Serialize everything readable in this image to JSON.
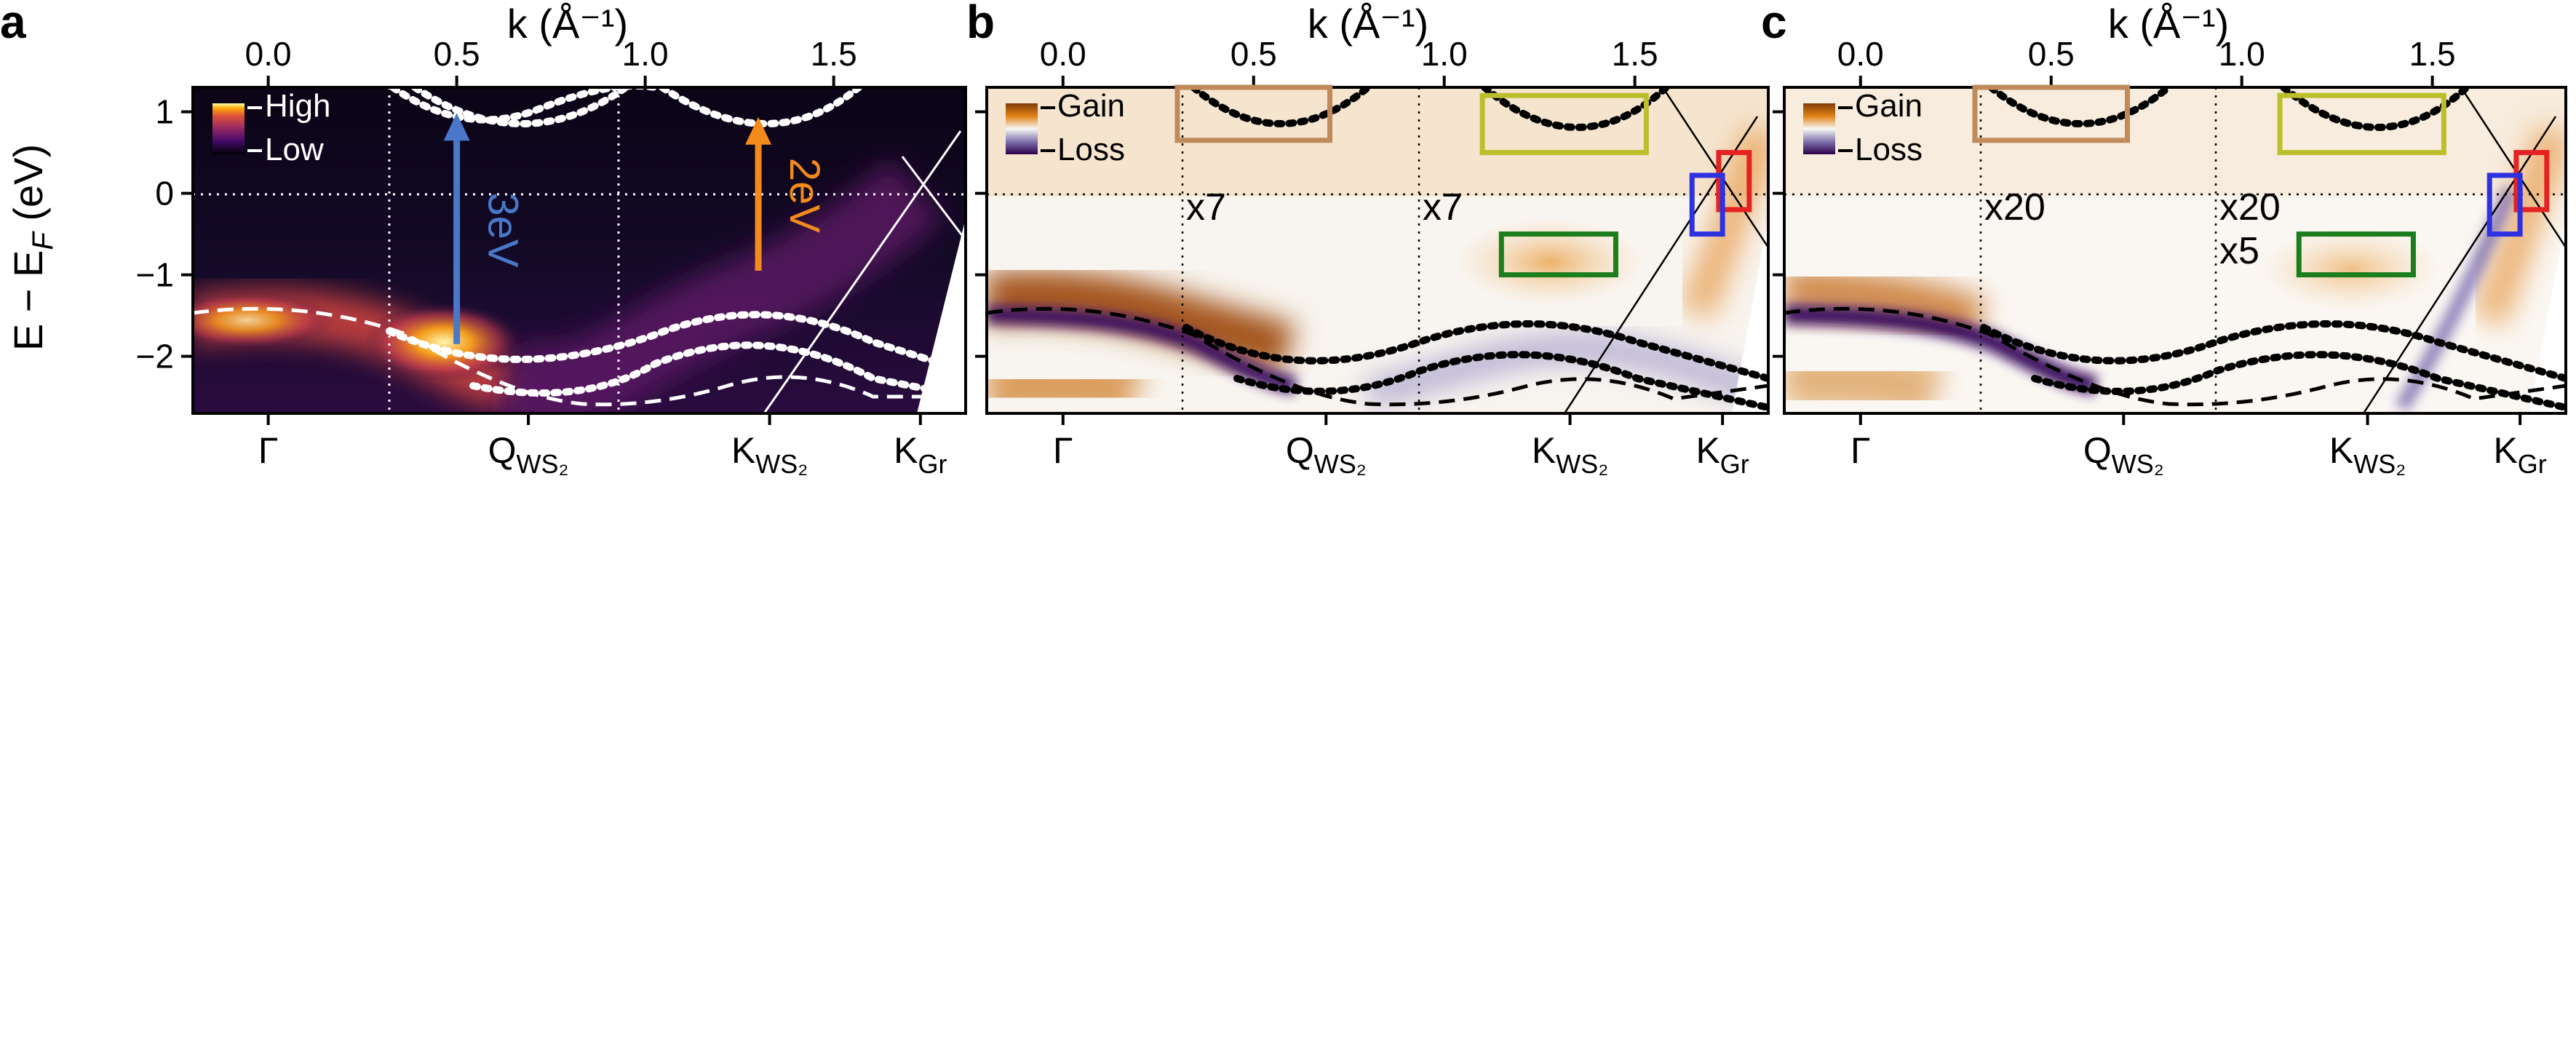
{
  "figure": {
    "top_axis_label": "k (Å⁻¹)",
    "y_axis_label": "E − E",
    "y_axis_label_sub": "F",
    "y_axis_label_unit": " (eV)"
  },
  "chart_data": [
    {
      "panel": "a",
      "type": "heatmap",
      "colormap": "inferno",
      "colorbar": {
        "high": "High",
        "low": "Low"
      },
      "x_top_ticks": [
        "0.0",
        "0.5",
        "1.0",
        "1.5"
      ],
      "x_top_range": [
        -0.2,
        1.85
      ],
      "x_bottom_ticks": [
        {
          "base": "Γ",
          "sub": "",
          "k": 0.0
        },
        {
          "base": "Q",
          "sub": "WS₂",
          "k": 0.69
        },
        {
          "base": "K",
          "sub": "WS₂",
          "k": 1.33
        },
        {
          "base": "K",
          "sub": "Gr",
          "k": 1.73
        }
      ],
      "y_ticks": [
        "1",
        "0",
        "−1",
        "−2"
      ],
      "ylim": [
        -2.7,
        1.3
      ],
      "arrows": [
        {
          "label": "3eV",
          "k": 0.5,
          "from": -1.85,
          "to": 0.95,
          "color": "#4a78c8"
        },
        {
          "label": "2eV",
          "k": 1.3,
          "from": -0.95,
          "to": 0.9,
          "color": "#f28a1c"
        }
      ]
    },
    {
      "panel": "b",
      "type": "heatmap",
      "colormap": "PuOr_r",
      "colorbar": {
        "high": "Gain",
        "low": "Loss"
      },
      "x_top_ticks": [
        "0.0",
        "0.5",
        "1.0",
        "1.5"
      ],
      "x_top_range": [
        -0.2,
        1.85
      ],
      "x_bottom_ticks": [
        {
          "base": "Γ",
          "sub": "",
          "k": 0.0
        },
        {
          "base": "Q",
          "sub": "WS₂",
          "k": 0.69
        },
        {
          "base": "K",
          "sub": "WS₂",
          "k": 1.33
        },
        {
          "base": "K",
          "sub": "Gr",
          "k": 1.73
        }
      ],
      "ylim": [
        -2.7,
        1.3
      ],
      "annotations": [
        "x7",
        "x7"
      ],
      "boxes": [
        {
          "color": "#c08a5a",
          "k": [
            0.3,
            0.7
          ],
          "E": [
            0.65,
            1.3
          ]
        },
        {
          "color": "#bcbf2c",
          "k": [
            1.1,
            1.53
          ],
          "E": [
            0.5,
            1.2
          ]
        },
        {
          "color": "#1b7d1b",
          "k": [
            1.15,
            1.45
          ],
          "E": [
            -1.0,
            -0.5
          ]
        },
        {
          "color": "#e52222",
          "k": [
            1.72,
            1.8
          ],
          "E": [
            -0.2,
            0.5
          ]
        },
        {
          "color": "#2d31e0",
          "k": [
            1.65,
            1.73
          ],
          "E": [
            -0.5,
            0.22
          ]
        }
      ]
    },
    {
      "panel": "c",
      "type": "heatmap",
      "colormap": "PuOr_r",
      "colorbar": {
        "high": "Gain",
        "low": "Loss"
      },
      "x_top_ticks": [
        "0.0",
        "0.5",
        "1.0",
        "1.5"
      ],
      "x_top_range": [
        -0.2,
        1.85
      ],
      "x_bottom_ticks": [
        {
          "base": "Γ",
          "sub": "",
          "k": 0.0
        },
        {
          "base": "Q",
          "sub": "WS₂",
          "k": 0.69
        },
        {
          "base": "K",
          "sub": "WS₂",
          "k": 1.33
        },
        {
          "base": "K",
          "sub": "Gr",
          "k": 1.73
        }
      ],
      "ylim": [
        -2.7,
        1.3
      ],
      "annotations": [
        "x20",
        "x20",
        "x5"
      ],
      "boxes": [
        {
          "color": "#c08a5a",
          "k": [
            0.3,
            0.7
          ],
          "E": [
            0.65,
            1.3
          ]
        },
        {
          "color": "#bcbf2c",
          "k": [
            1.1,
            1.53
          ],
          "E": [
            0.5,
            1.2
          ]
        },
        {
          "color": "#1b7d1b",
          "k": [
            1.15,
            1.45
          ],
          "E": [
            -1.0,
            -0.5
          ]
        },
        {
          "color": "#e52222",
          "k": [
            1.72,
            1.8
          ],
          "E": [
            -0.2,
            0.5
          ]
        },
        {
          "color": "#2d31e0",
          "k": [
            1.65,
            1.73
          ],
          "E": [
            -0.5,
            0.22
          ]
        }
      ]
    }
  ]
}
